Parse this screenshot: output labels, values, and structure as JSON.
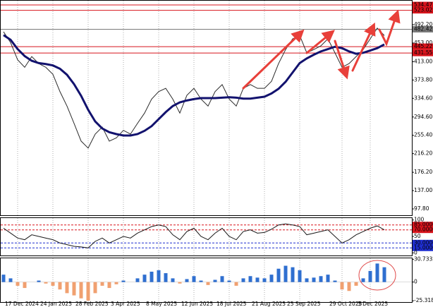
{
  "chart_data": [
    {
      "type": "line",
      "categories": [
        null,
        null,
        "17 Dec 2024",
        null,
        null,
        null,
        null,
        "24 Jan 2025",
        null,
        null,
        null,
        null,
        "28 Feb 2025",
        null,
        null,
        null,
        null,
        "3 Apr 2025",
        null,
        null,
        null,
        null,
        "8 May 2025",
        null,
        null,
        null,
        null,
        "12 Jun 2025",
        null,
        null,
        null,
        null,
        "18 Jul 2025",
        null,
        null,
        null,
        null,
        "21 Aug 2025",
        null,
        null,
        null,
        null,
        "25 Sep 2025",
        null,
        null,
        null,
        null,
        null,
        "29 Oct 2025",
        null,
        null,
        null,
        "3 Dec 2025",
        null,
        null
      ],
      "series": [
        {
          "color": "#2b2b2b",
          "values": [
            477,
            454,
            417,
            401,
            424,
            409,
            401,
            386,
            349,
            318,
            281,
            243,
            228,
            258,
            273,
            243,
            250,
            266,
            258,
            281,
            303,
            333,
            349,
            356,
            333,
            303,
            341,
            356,
            333,
            318,
            349,
            364,
            333,
            318,
            356,
            364,
            356,
            356,
            371,
            409,
            439,
            462,
            469,
            432,
            439,
            447,
            462,
            432,
            401,
            409,
            424,
            439,
            462,
            485,
            469
          ]
        },
        {
          "color": "#12126e",
          "values": [
            470,
            460,
            440,
            425,
            415,
            410,
            408,
            405,
            398,
            385,
            365,
            340,
            310,
            285,
            270,
            262,
            258,
            255,
            255,
            258,
            265,
            275,
            290,
            305,
            318,
            326,
            330,
            333,
            335,
            335,
            335,
            336,
            337,
            336,
            334,
            334,
            336,
            338,
            345,
            355,
            370,
            390,
            410,
            420,
            428,
            435,
            440,
            445,
            442,
            435,
            430,
            432,
            437,
            442,
            450
          ]
        }
      ],
      "ylim": [
        84.2,
        545.1
      ],
      "yticks": [
        {
          "value": 492.2,
          "label": "492.20"
        },
        {
          "value": 453,
          "label": "453.00"
        },
        {
          "value": 413,
          "label": "413.00"
        },
        {
          "value": 373.8,
          "label": "373.80"
        },
        {
          "value": 334.6,
          "label": "334.60"
        },
        {
          "value": 294.6,
          "label": "294.60"
        },
        {
          "value": 255.4,
          "label": "255.40"
        },
        {
          "value": 216.2,
          "label": "216.20"
        },
        {
          "value": 176.2,
          "label": "176.20"
        },
        {
          "value": 137,
          "label": "137.00"
        },
        {
          "value": 97.8,
          "label": "97.80"
        }
      ],
      "levels": [
        {
          "value": 534.47,
          "color": "#d8141c"
        },
        {
          "value": 523.02,
          "color": "#d8141c"
        },
        {
          "value": 482.42,
          "color": "#7a7a7a"
        },
        {
          "value": 445.22,
          "color": "#d8141c"
        },
        {
          "value": 431.55,
          "color": "#d8141c"
        }
      ],
      "grid": true
    },
    {
      "type": "line",
      "series": [
        {
          "color": "#1a1a1a",
          "values": [
            75,
            60,
            45,
            40,
            55,
            50,
            45,
            40,
            30,
            25,
            20,
            18,
            15,
            35,
            45,
            30,
            40,
            50,
            45,
            60,
            70,
            80,
            85,
            80,
            55,
            40,
            65,
            75,
            50,
            40,
            60,
            75,
            50,
            40,
            65,
            70,
            60,
            62,
            72,
            85,
            88,
            85,
            80,
            55,
            60,
            65,
            70,
            50,
            30,
            40,
            55,
            65,
            75,
            82,
            70
          ]
        }
      ],
      "ylim": [
        -8,
        108
      ],
      "yticks": [
        100,
        {
          "value": 85,
          "label": "85.0000"
        },
        {
          "value": 70,
          "label": "70.0000"
        },
        50,
        {
          "value": 30,
          "label": "30.0000"
        },
        {
          "value": 15,
          "label": "15.0000"
        },
        0
      ],
      "levels": [
        {
          "value": 85,
          "color": "#d8141c"
        },
        {
          "value": 70,
          "color": "#d8141c"
        },
        {
          "value": 30,
          "color": "#1f2fd0"
        },
        {
          "value": 15,
          "color": "#1f2fd0"
        }
      ],
      "grid": true
    },
    {
      "type": "bar",
      "color": "#2f6fd0",
      "negative_color": "#f0a070",
      "values": [
        10,
        5,
        -5,
        -8,
        0,
        2,
        -2,
        -5,
        -10,
        -15,
        -18,
        -22,
        -25,
        -15,
        -5,
        -8,
        -3,
        2,
        0,
        5,
        10,
        14,
        16,
        12,
        5,
        -2,
        4,
        8,
        2,
        -4,
        3,
        8,
        2,
        -5,
        5,
        8,
        6,
        5,
        10,
        18,
        22,
        20,
        16,
        5,
        6,
        8,
        10,
        2,
        -10,
        -12,
        -5,
        5,
        15,
        25,
        20
      ],
      "ylim": [
        -27,
        33
      ],
      "yticks": [
        30.7332,
        0,
        -25.3185
      ],
      "grid": true
    }
  ]
}
